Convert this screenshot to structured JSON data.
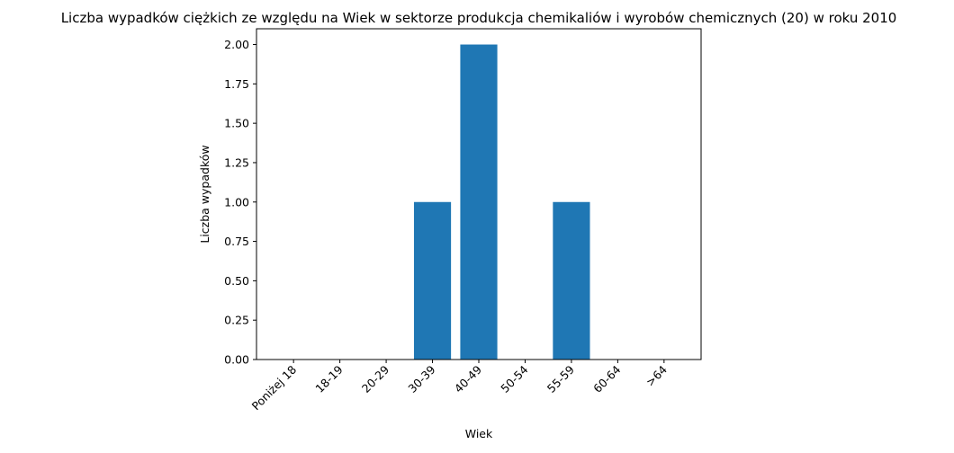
{
  "chart_data": {
    "type": "bar",
    "title": "Liczba wypadków ciężkich ze względu na Wiek w sektorze produkcja chemikaliów i wyrobów  chemicznych (20) w roku 2010",
    "xlabel": "Wiek",
    "ylabel": "Liczba wypadków",
    "categories": [
      "Poniżej 18",
      "18-19",
      "20-29",
      "30-39",
      "40-49",
      "50-54",
      "55-59",
      "60-64",
      ">64"
    ],
    "values": [
      0,
      0,
      0,
      1,
      2,
      0,
      1,
      0,
      0
    ],
    "ylim": [
      0,
      2.1
    ],
    "yticks": [
      0.0,
      0.25,
      0.5,
      0.75,
      1.0,
      1.25,
      1.5,
      1.75,
      2.0
    ],
    "ytick_labels": [
      "0.00",
      "0.25",
      "0.50",
      "0.75",
      "1.00",
      "1.25",
      "1.50",
      "1.75",
      "2.00"
    ],
    "bar_color": "#1f77b4",
    "grid": false,
    "legend": "none"
  }
}
